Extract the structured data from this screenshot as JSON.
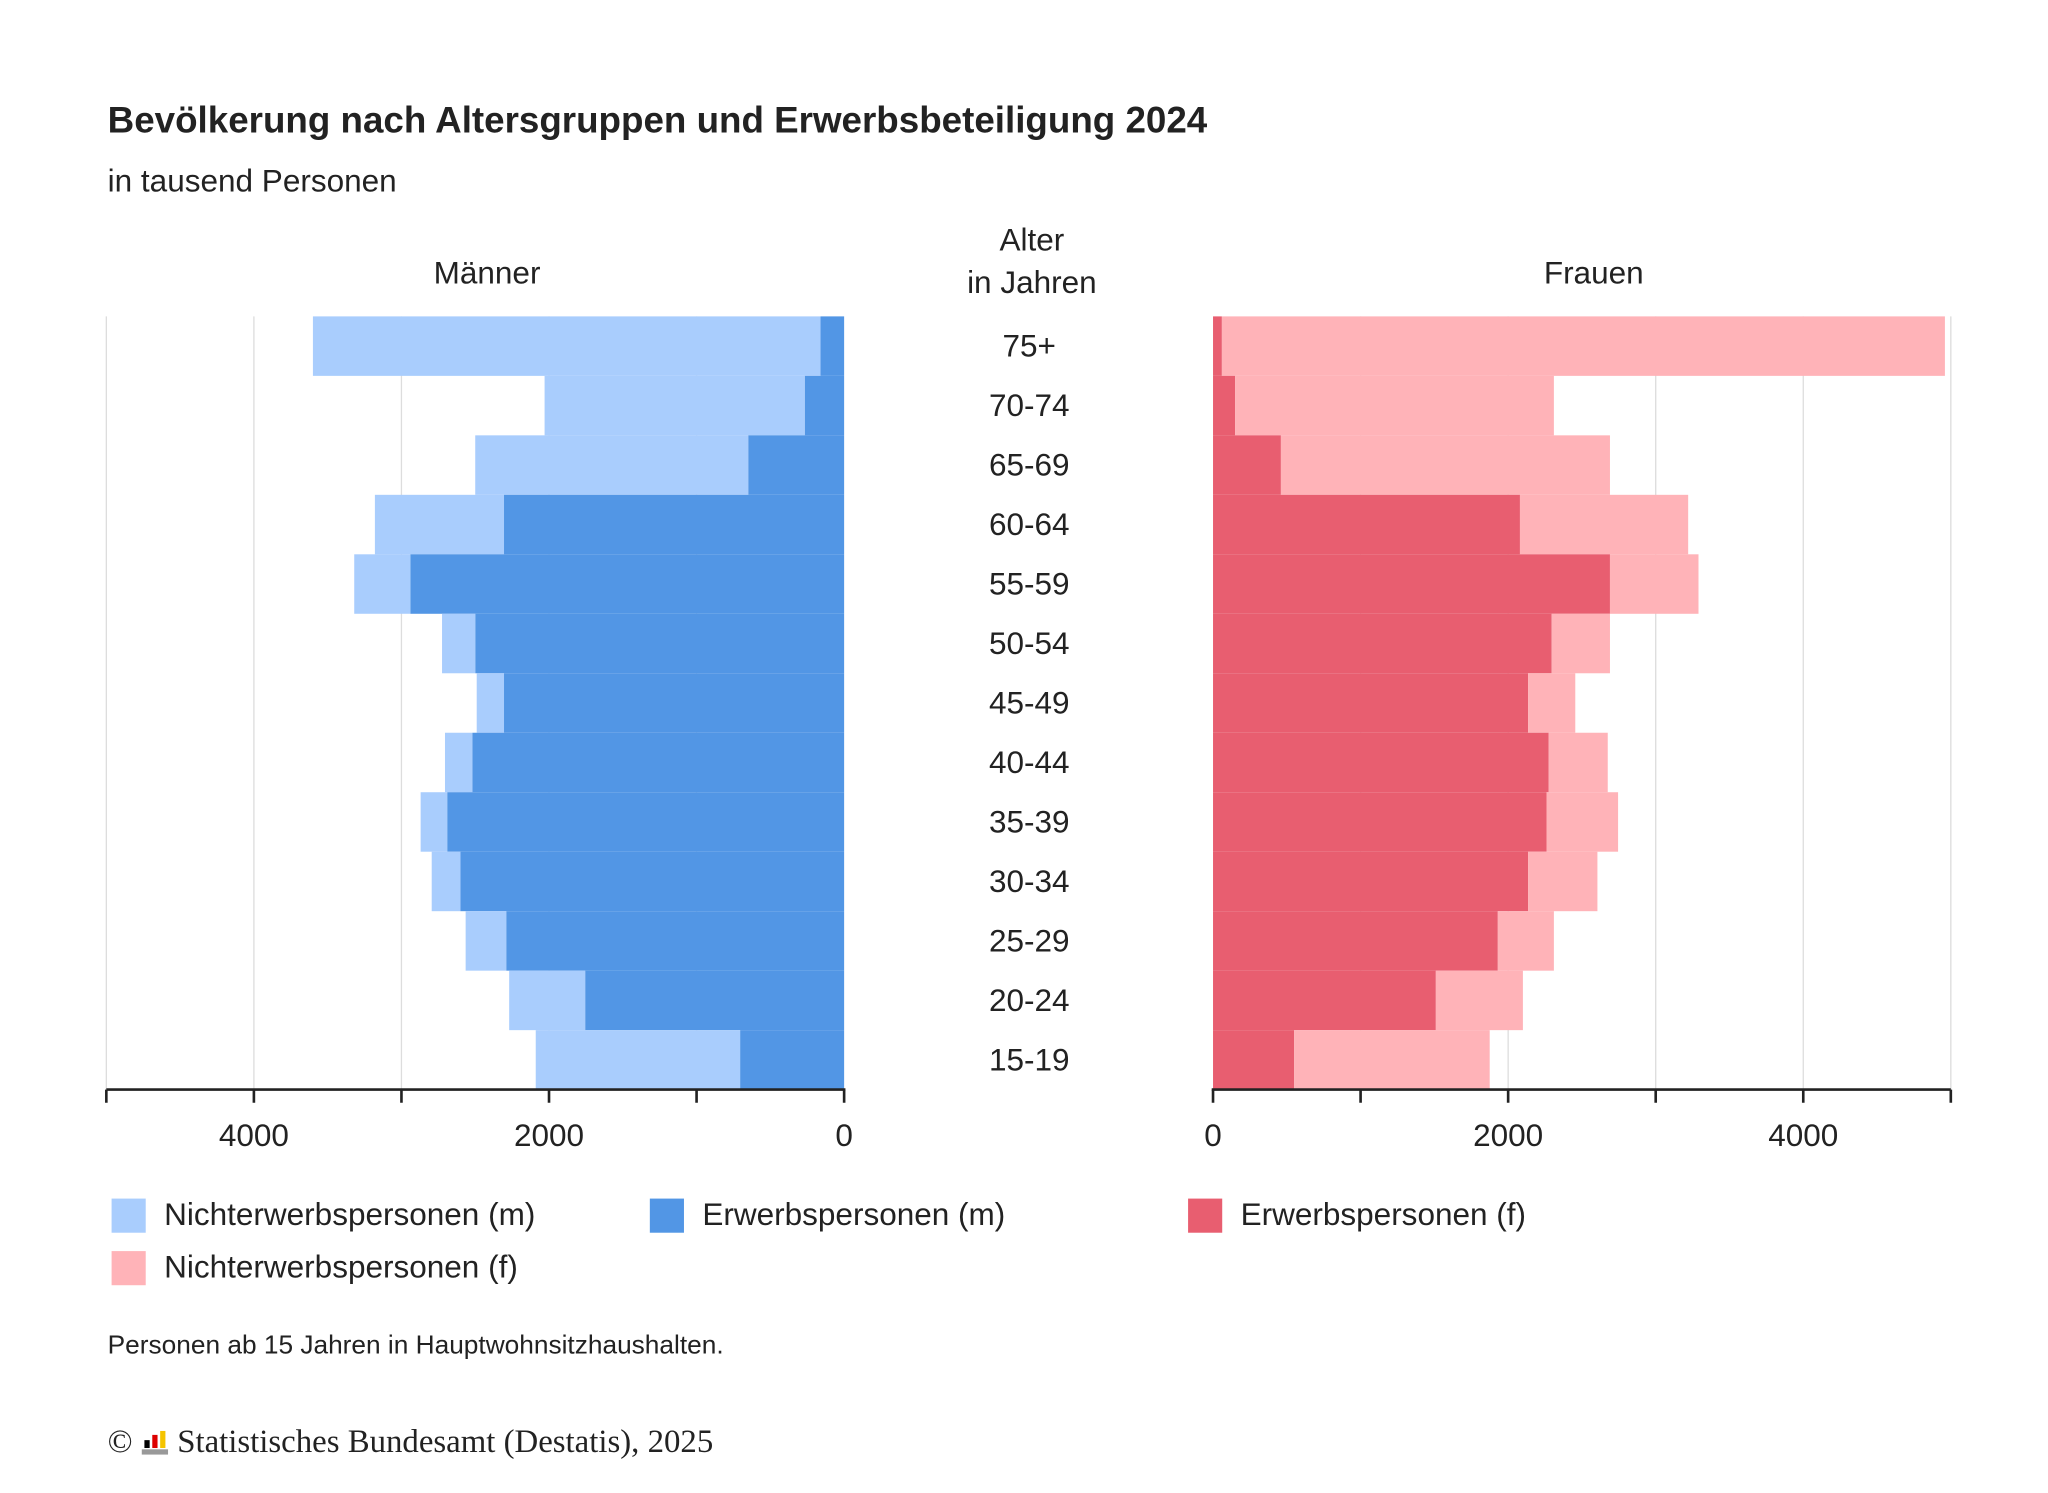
{
  "title": "Bevölkerung nach Altersgruppen und Erwerbsbeteiligung 2024",
  "subtitle": "in tausend Personen",
  "note": "Personen ab 15 Jahren in Hauptwohnsitzhaushalten.",
  "source": "Statistisches Bundesamt (Destatis), 2025",
  "copyright_symbol": "©",
  "chart_data": {
    "type": "bar",
    "orientation": "horizontal-population-pyramid",
    "stacked": true,
    "panel_left_title": "Männer",
    "panel_right_title": "Frauen",
    "center_label_line1": "Alter",
    "center_label_line2": "in Jahren",
    "categories": [
      "75+",
      "70-74",
      "65-69",
      "60-64",
      "55-59",
      "50-54",
      "45-49",
      "40-44",
      "35-39",
      "30-34",
      "25-29",
      "20-24",
      "15-19"
    ],
    "xlim": [
      0,
      5000
    ],
    "ticks": [
      0,
      1000,
      2000,
      3000,
      4000,
      5000
    ],
    "tick_labels": [
      "0",
      "2000",
      "4000"
    ],
    "grid": true,
    "legend_position": "bottom",
    "series": [
      {
        "name": "Nichterwerbspersonen (m)",
        "side": "left",
        "color": "#a9cdfd",
        "values": [
          3440,
          1763,
          1850,
          875,
          380,
          225,
          185,
          185,
          180,
          195,
          275,
          515,
          1385
        ]
      },
      {
        "name": "Erwerbspersonen (m)",
        "side": "left",
        "color": "#5296e5",
        "values": [
          160,
          267,
          650,
          2305,
          2940,
          2500,
          2305,
          2520,
          2690,
          2600,
          2290,
          1755,
          705
        ]
      },
      {
        "name": "Erwerbspersonen (f)",
        "side": "right",
        "color": "#e85e70",
        "values": [
          60,
          150,
          460,
          2080,
          2690,
          2295,
          2135,
          2275,
          2260,
          2135,
          1930,
          1510,
          550
        ]
      },
      {
        "name": "Nichterwerbspersonen (f)",
        "side": "right",
        "color": "#ffb3b8",
        "values": [
          4900,
          2160,
          2230,
          1140,
          600,
          395,
          320,
          400,
          485,
          470,
          380,
          590,
          1325
        ]
      }
    ]
  }
}
